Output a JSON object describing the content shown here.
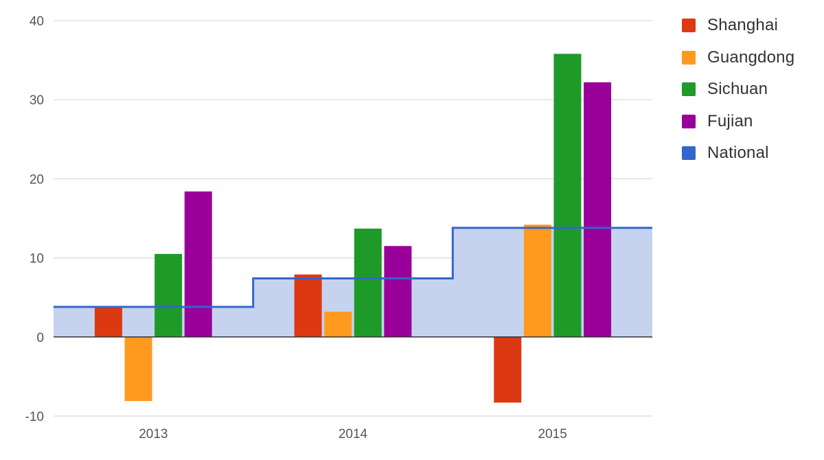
{
  "chart_data": {
    "type": "bar",
    "categories": [
      "2013",
      "2014",
      "2015"
    ],
    "series": [
      {
        "name": "Shanghai",
        "values": [
          3.7,
          7.9,
          -8.3
        ],
        "color": "#dc3912"
      },
      {
        "name": "Guangdong",
        "values": [
          -8.1,
          3.2,
          14.2
        ],
        "color": "#ff9a1f"
      },
      {
        "name": "Sichuan",
        "values": [
          10.5,
          13.7,
          35.8
        ],
        "color": "#1e9a29"
      },
      {
        "name": "Fujian",
        "values": [
          18.4,
          11.5,
          32.2
        ],
        "color": "#990099"
      }
    ],
    "step_series": {
      "name": "National",
      "type": "stepped-area",
      "values": [
        3.8,
        7.4,
        13.8
      ],
      "color": "#3366cc",
      "fill": "#c5d3ef"
    },
    "y_ticks": [
      "40",
      "30",
      "20",
      "10",
      "0",
      "-10"
    ],
    "ylim": [
      -10,
      40
    ],
    "grid": true,
    "legend_position": "right"
  }
}
